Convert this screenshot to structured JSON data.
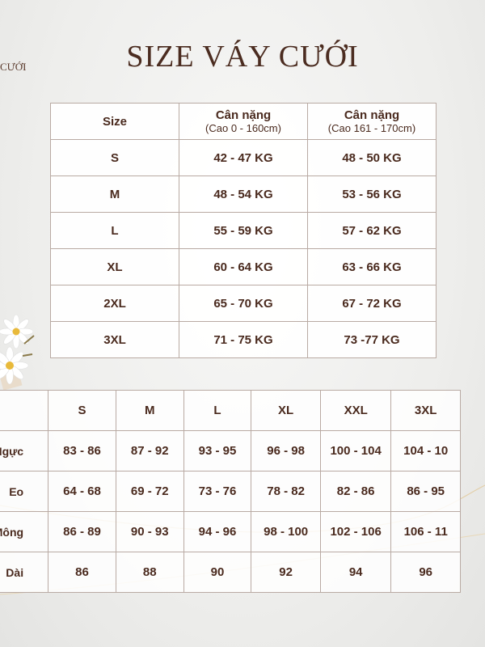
{
  "brand_fragment": "CƯỚI",
  "title": "SIZE VÁY CƯỚI",
  "weight_table": {
    "headers": [
      {
        "label": "Size",
        "sub": ""
      },
      {
        "label": "Cân nặng",
        "sub": "(Cao 0 - 160cm)"
      },
      {
        "label": "Cân nặng",
        "sub": "(Cao 161 - 170cm)"
      }
    ],
    "rows": [
      [
        "S",
        "42 - 47 KG",
        "48 - 50 KG"
      ],
      [
        "M",
        "48 - 54 KG",
        "53 - 56 KG"
      ],
      [
        "L",
        "55 - 59 KG",
        "57 - 62 KG"
      ],
      [
        "XL",
        "60 - 64 KG",
        "63 - 66 KG"
      ],
      [
        "2XL",
        "65 - 70 KG",
        "67 - 72 KG"
      ],
      [
        "3XL",
        "71 - 75 KG",
        "73 -77 KG"
      ]
    ]
  },
  "measure_table": {
    "headers": [
      "",
      "S",
      "M",
      "L",
      "XL",
      "XXL",
      "3XL"
    ],
    "rows": [
      [
        "Ngực",
        "83 - 86",
        "87 - 92",
        "93 - 95",
        "96 - 98",
        "100 - 104",
        "104 - 10"
      ],
      [
        "Eo",
        "64 - 68",
        "69 - 72",
        "73 - 76",
        "78 - 82",
        "82 - 86",
        "86 - 95"
      ],
      [
        "Mông",
        "86 - 89",
        "90 - 93",
        "94 - 96",
        "98 - 100",
        "102 - 106",
        "106 - 11"
      ],
      [
        "Dài",
        "86",
        "88",
        "90",
        "92",
        "94",
        "96"
      ]
    ]
  },
  "colors": {
    "text": "#4a2a1e",
    "border": "#b9aaa3",
    "background": "#eeeeec"
  }
}
